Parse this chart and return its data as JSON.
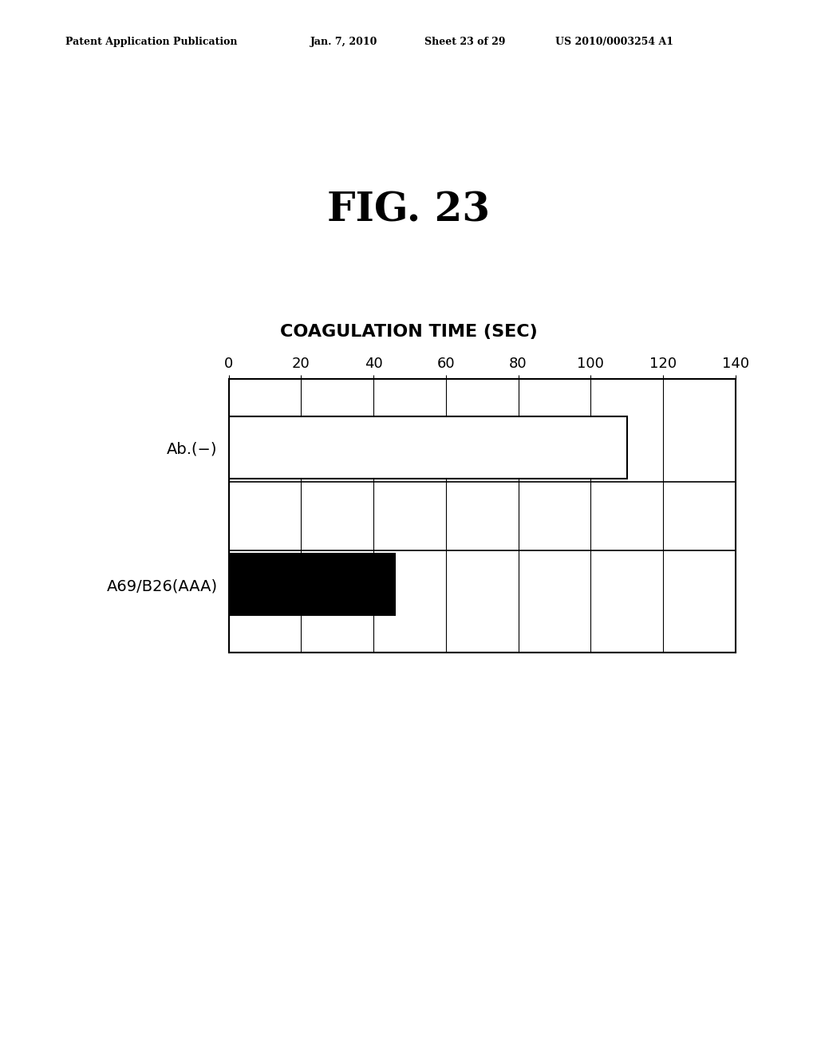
{
  "title_fig": "FIG. 23",
  "chart_title": "COAGULATION TIME (SEC)",
  "header_text": "Patent Application Publication",
  "header_date": "Jan. 7, 2010",
  "header_sheet": "Sheet 23 of 29",
  "header_patent": "US 2010/0003254 A1",
  "categories": [
    "Ab.(−)",
    "A69/B26(AAA)"
  ],
  "values": [
    110,
    46
  ],
  "bar_colors": [
    "#ffffff",
    "#000000"
  ],
  "bar_edgecolors": [
    "#000000",
    "#000000"
  ],
  "xlim": [
    0,
    140
  ],
  "xticks": [
    0,
    20,
    40,
    60,
    80,
    100,
    120,
    140
  ],
  "background_color": "#ffffff",
  "fig_title_fontsize": 36,
  "chart_title_fontsize": 16,
  "tick_fontsize": 13,
  "ylabel_fontsize": 14,
  "bar_height": 0.45
}
